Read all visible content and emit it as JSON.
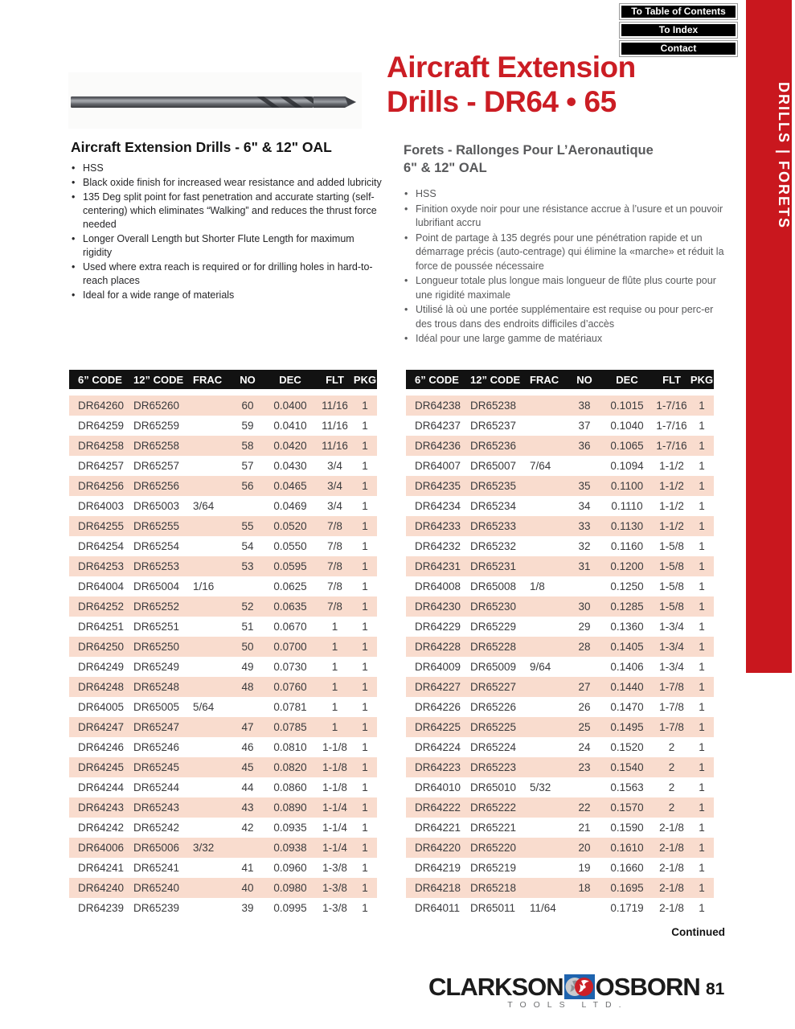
{
  "nav": {
    "items": [
      "To Table of Contents",
      "To Index",
      "Contact"
    ]
  },
  "sidebar": {
    "label": "DRILLS | FORETS",
    "color": "#c9171e"
  },
  "title": {
    "line1": "Aircraft Extension",
    "line2": "Drills - DR64 • 65",
    "color": "#cb1d24"
  },
  "sections": {
    "en": {
      "heading": "Aircraft Extension Drills - 6\" & 12\" OAL",
      "bullets": [
        "HSS",
        "Black oxide finish for increased wear resistance and added lubricity",
        "135 Deg split point for fast penetration and accurate starting (self-centering) which eliminates “Walking” and reduces the thrust force needed",
        "Longer Overall Length but Shorter Flute Length for maximum rigidity",
        "Used where extra reach is required or for drilling holes in hard-to-reach places",
        "Ideal for a wide range of materials"
      ]
    },
    "fr": {
      "heading_line1": "Forets - Rallonges Pour L’Aeronautique",
      "heading_line2": "6\" & 12\" OAL",
      "bullets": [
        "HSS",
        "Finition oxyde noir pour une résistance accrue à l’usure et un pouvoir lubrifiant accru",
        "Point de partage à 135 degrés pour une pénétration rapide et un démarrage précis (auto-centrage) qui élimine la «marche» et réduit la force de poussée nécessaire",
        "Longueur totale plus longue mais longueur de flûte plus courte pour une rigidité maximale",
        "Utilisé là où une portée supplémentaire est requise ou pour perc-er des trous dans des endroits difficiles d’accès",
        "Idéal pour une large gamme de matériaux"
      ]
    }
  },
  "table": {
    "headers": [
      "6” CODE",
      "12” CODE",
      "FRAC",
      "NO",
      "DEC",
      "FLT",
      "PKG"
    ],
    "row_pink": "#f9dcce",
    "left_rows": [
      [
        "DR64260",
        "DR65260",
        "",
        "60",
        "0.0400",
        "11/16",
        "1"
      ],
      [
        "DR64259",
        "DR65259",
        "",
        "59",
        "0.0410",
        "11/16",
        "1"
      ],
      [
        "DR64258",
        "DR65258",
        "",
        "58",
        "0.0420",
        "11/16",
        "1"
      ],
      [
        "DR64257",
        "DR65257",
        "",
        "57",
        "0.0430",
        "3/4",
        "1"
      ],
      [
        "DR64256",
        "DR65256",
        "",
        "56",
        "0.0465",
        "3/4",
        "1"
      ],
      [
        "DR64003",
        "DR65003",
        "3/64",
        "",
        "0.0469",
        "3/4",
        "1"
      ],
      [
        "DR64255",
        "DR65255",
        "",
        "55",
        "0.0520",
        "7/8",
        "1"
      ],
      [
        "DR64254",
        "DR65254",
        "",
        "54",
        "0.0550",
        "7/8",
        "1"
      ],
      [
        "DR64253",
        "DR65253",
        "",
        "53",
        "0.0595",
        "7/8",
        "1"
      ],
      [
        "DR64004",
        "DR65004",
        "1/16",
        "",
        "0.0625",
        "7/8",
        "1"
      ],
      [
        "DR64252",
        "DR65252",
        "",
        "52",
        "0.0635",
        "7/8",
        "1"
      ],
      [
        "DR64251",
        "DR65251",
        "",
        "51",
        "0.0670",
        "1",
        "1"
      ],
      [
        "DR64250",
        "DR65250",
        "",
        "50",
        "0.0700",
        "1",
        "1"
      ],
      [
        "DR64249",
        "DR65249",
        "",
        "49",
        "0.0730",
        "1",
        "1"
      ],
      [
        "DR64248",
        "DR65248",
        "",
        "48",
        "0.0760",
        "1",
        "1"
      ],
      [
        "DR64005",
        "DR65005",
        "5/64",
        "",
        "0.0781",
        "1",
        "1"
      ],
      [
        "DR64247",
        "DR65247",
        "",
        "47",
        "0.0785",
        "1",
        "1"
      ],
      [
        "DR64246",
        "DR65246",
        "",
        "46",
        "0.0810",
        "1-1/8",
        "1"
      ],
      [
        "DR64245",
        "DR65245",
        "",
        "45",
        "0.0820",
        "1-1/8",
        "1"
      ],
      [
        "DR64244",
        "DR65244",
        "",
        "44",
        "0.0860",
        "1-1/8",
        "1"
      ],
      [
        "DR64243",
        "DR65243",
        "",
        "43",
        "0.0890",
        "1-1/4",
        "1"
      ],
      [
        "DR64242",
        "DR65242",
        "",
        "42",
        "0.0935",
        "1-1/4",
        "1"
      ],
      [
        "DR64006",
        "DR65006",
        "3/32",
        "",
        "0.0938",
        "1-1/4",
        "1"
      ],
      [
        "DR64241",
        "DR65241",
        "",
        "41",
        "0.0960",
        "1-3/8",
        "1"
      ],
      [
        "DR64240",
        "DR65240",
        "",
        "40",
        "0.0980",
        "1-3/8",
        "1"
      ],
      [
        "DR64239",
        "DR65239",
        "",
        "39",
        "0.0995",
        "1-3/8",
        "1"
      ]
    ],
    "right_rows": [
      [
        "DR64238",
        "DR65238",
        "",
        "38",
        "0.1015",
        "1-7/16",
        "1"
      ],
      [
        "DR64237",
        "DR65237",
        "",
        "37",
        "0.1040",
        "1-7/16",
        "1"
      ],
      [
        "DR64236",
        "DR65236",
        "",
        "36",
        "0.1065",
        "1-7/16",
        "1"
      ],
      [
        "DR64007",
        "DR65007",
        "7/64",
        "",
        "0.1094",
        "1-1/2",
        "1"
      ],
      [
        "DR64235",
        "DR65235",
        "",
        "35",
        "0.1100",
        "1-1/2",
        "1"
      ],
      [
        "DR64234",
        "DR65234",
        "",
        "34",
        "0.1110",
        "1-1/2",
        "1"
      ],
      [
        "DR64233",
        "DR65233",
        "",
        "33",
        "0.1130",
        "1-1/2",
        "1"
      ],
      [
        "DR64232",
        "DR65232",
        "",
        "32",
        "0.1160",
        "1-5/8",
        "1"
      ],
      [
        "DR64231",
        "DR65231",
        "",
        "31",
        "0.1200",
        "1-5/8",
        "1"
      ],
      [
        "DR64008",
        "DR65008",
        "1/8",
        "",
        "0.1250",
        "1-5/8",
        "1"
      ],
      [
        "DR64230",
        "DR65230",
        "",
        "30",
        "0.1285",
        "1-5/8",
        "1"
      ],
      [
        "DR64229",
        "DR65229",
        "",
        "29",
        "0.1360",
        "1-3/4",
        "1"
      ],
      [
        "DR64228",
        "DR65228",
        "",
        "28",
        "0.1405",
        "1-3/4",
        "1"
      ],
      [
        "DR64009",
        "DR65009",
        "9/64",
        "",
        "0.1406",
        "1-3/4",
        "1"
      ],
      [
        "DR64227",
        "DR65227",
        "",
        "27",
        "0.1440",
        "1-7/8",
        "1"
      ],
      [
        "DR64226",
        "DR65226",
        "",
        "26",
        "0.1470",
        "1-7/8",
        "1"
      ],
      [
        "DR64225",
        "DR65225",
        "",
        "25",
        "0.1495",
        "1-7/8",
        "1"
      ],
      [
        "DR64224",
        "DR65224",
        "",
        "24",
        "0.1520",
        "2",
        "1"
      ],
      [
        "DR64223",
        "DR65223",
        "",
        "23",
        "0.1540",
        "2",
        "1"
      ],
      [
        "DR64010",
        "DR65010",
        "5/32",
        "",
        "0.1563",
        "2",
        "1"
      ],
      [
        "DR64222",
        "DR65222",
        "",
        "22",
        "0.1570",
        "2",
        "1"
      ],
      [
        "DR64221",
        "DR65221",
        "",
        "21",
        "0.1590",
        "2-1/8",
        "1"
      ],
      [
        "DR64220",
        "DR65220",
        "",
        "20",
        "0.1610",
        "2-1/8",
        "1"
      ],
      [
        "DR64219",
        "DR65219",
        "",
        "19",
        "0.1660",
        "2-1/8",
        "1"
      ],
      [
        "DR64218",
        "DR65218",
        "",
        "18",
        "0.1695",
        "2-1/8",
        "1"
      ],
      [
        "DR64011",
        "DR65011",
        "11/64",
        "",
        "0.1719",
        "2-1/8",
        "1"
      ]
    ]
  },
  "footer": {
    "continued_label": "Continued",
    "brand_left": "CLARKSON",
    "brand_right": "OSBORN",
    "brand_sub": "TOOLS LTD.",
    "page_number": "81"
  },
  "icons": {
    "logo_icon": "pinwheel-cutter-icon",
    "drill_image": "aircraft-extension-drill-photo"
  }
}
